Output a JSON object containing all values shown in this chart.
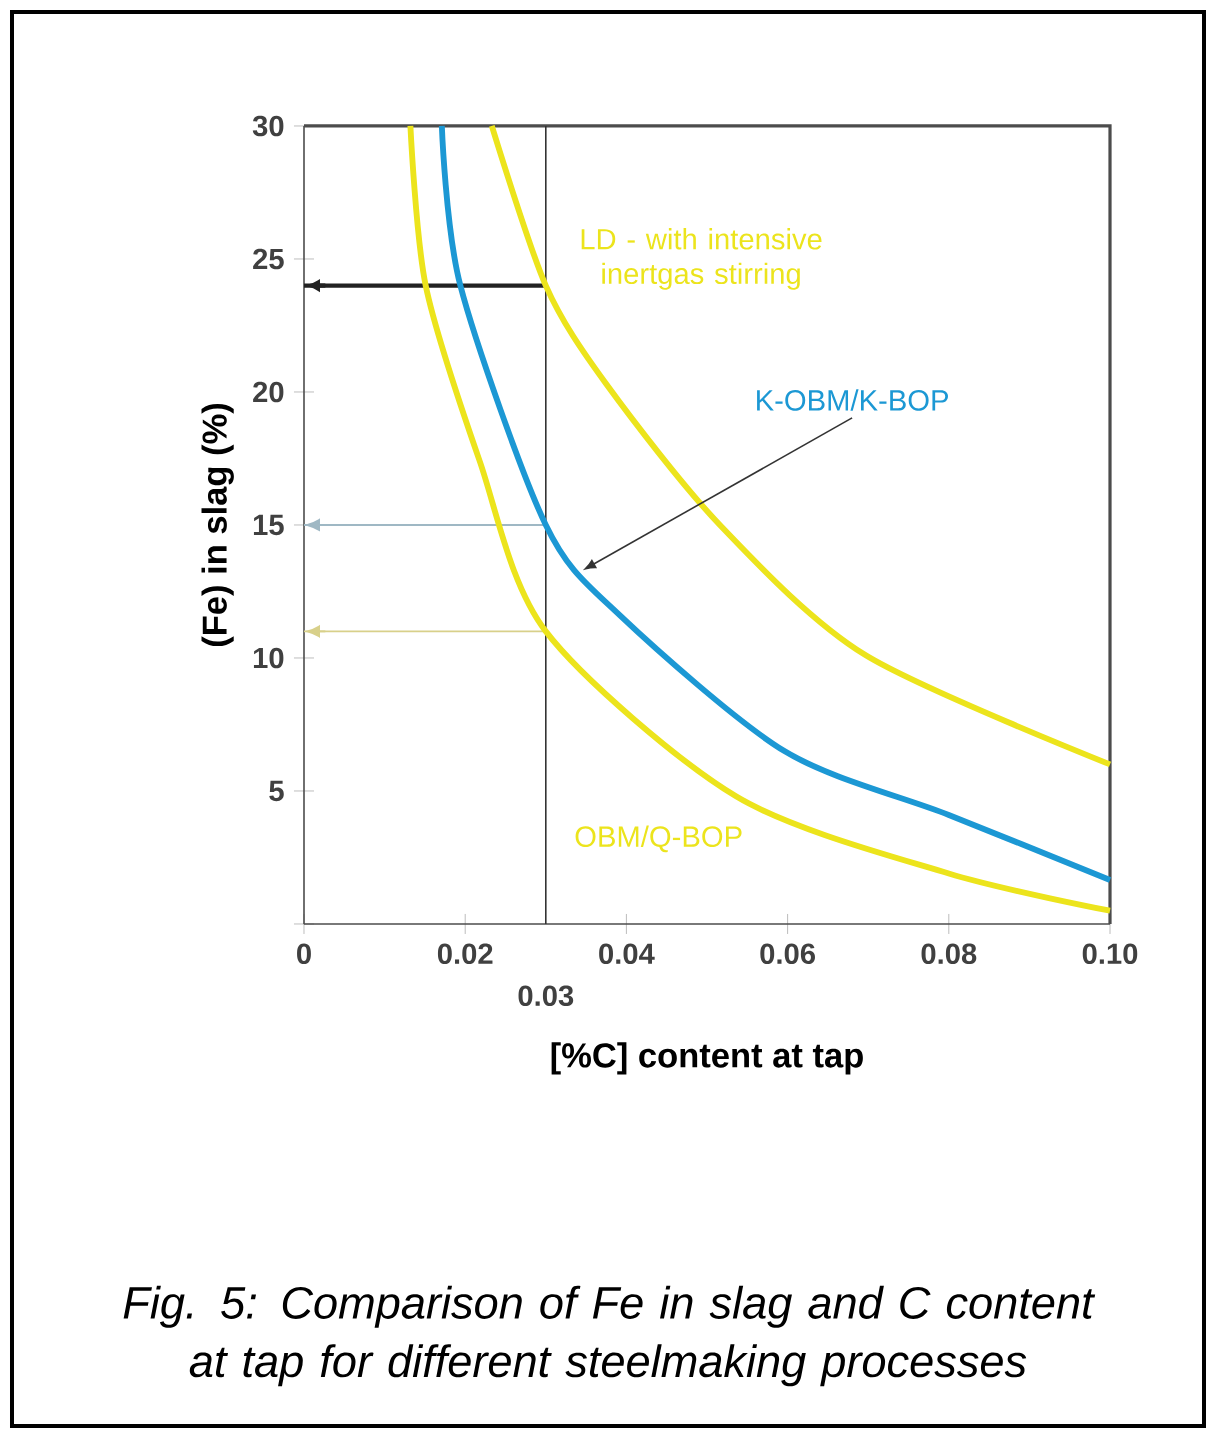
{
  "chart_data": {
    "type": "line",
    "xlabel": "[%C] content at tap",
    "ylabel": "(Fe) in slag (%)",
    "xlim": [
      0,
      0.1
    ],
    "ylim": [
      0,
      30
    ],
    "xticks": [
      0,
      0.02,
      0.04,
      0.06,
      0.08,
      {
        "value": 0.1,
        "label": "0.10"
      }
    ],
    "yticks": [
      {
        "value": 0,
        "label": null
      },
      5,
      10,
      15,
      20,
      25,
      30
    ],
    "series": [
      {
        "name": "LD - with intensive inertgas stirring",
        "color": "#ece41c",
        "x": [
          0.0233,
          0.03,
          0.0375,
          0.0516,
          0.0697,
          0.1
        ],
        "values": [
          30,
          24,
          20.3,
          15,
          10.1,
          6
        ]
      },
      {
        "name": "K-OBM/K-BOP",
        "color": "#1c98d4",
        "x": [
          0.0171,
          0.0194,
          0.03,
          0.0392,
          0.0596,
          0.08,
          0.1
        ],
        "values": [
          30,
          24,
          15,
          11.6,
          6.5,
          4.1,
          1.65
        ]
      },
      {
        "name": "OBM/Q-BOP",
        "color": "#ece41c",
        "x": [
          0.0132,
          0.0151,
          0.0218,
          0.03,
          0.0536,
          0.08,
          0.1
        ],
        "values": [
          30,
          24,
          17.4,
          11,
          4.8,
          1.9,
          0.5
        ]
      }
    ],
    "ref_lines": [
      {
        "axis": "x",
        "value": 0.03,
        "label": "0.03",
        "color": "#333333"
      },
      {
        "axis": "y",
        "value": 24,
        "color": "#222222"
      },
      {
        "axis": "y",
        "value": 15,
        "color": "#9fb8c4"
      },
      {
        "axis": "y",
        "value": 11,
        "color": "#d8d08a"
      }
    ],
    "annotations": [
      "Fig. 5: Comparison of Fe in slag and C content at tap for different steelmaking processes"
    ],
    "grid": false,
    "marker": "none",
    "line_style": "solid"
  }
}
